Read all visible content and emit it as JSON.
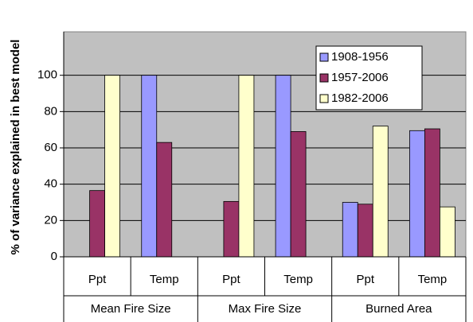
{
  "chart_data": {
    "type": "bar",
    "y_label": "% of variance explained in best model",
    "categories": [
      "Ppt",
      "Temp",
      "Ppt",
      "Temp",
      "Ppt",
      "Temp"
    ],
    "groups": [
      "Mean Fire Size",
      "Max Fire Size",
      "Burned Area"
    ],
    "series": [
      {
        "name": "1908-1956",
        "color": "#9999ff",
        "values": [
          null,
          100,
          null,
          100,
          30,
          69.5
        ]
      },
      {
        "name": "1957-2006",
        "color": "#993366",
        "values": [
          36.5,
          63,
          30.5,
          69,
          29,
          70.5
        ]
      },
      {
        "name": "1982-2006",
        "color": "#ffffcc",
        "values": [
          100,
          null,
          100,
          null,
          72,
          27.5
        ]
      }
    ],
    "ylim": [
      0,
      120
    ],
    "yticks": [
      0,
      20,
      40,
      60,
      80,
      100
    ],
    "grid": true,
    "legend": "upper right"
  }
}
